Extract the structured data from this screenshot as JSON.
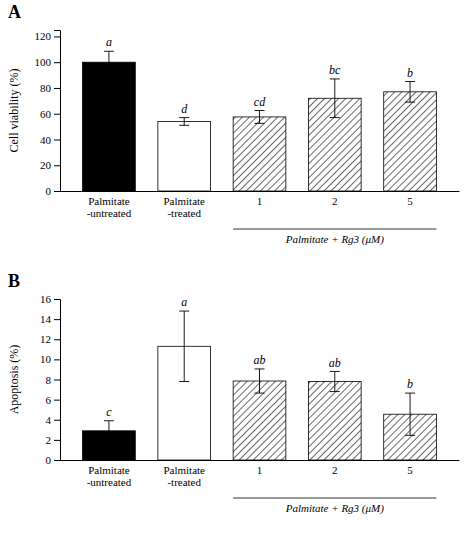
{
  "chart_data": [
    {
      "type": "bar",
      "title": "A",
      "categories": [
        "Palmitate\n-untreated",
        "Palmitate\n-treated",
        "1",
        "2",
        "5"
      ],
      "values": [
        100.0,
        54.0,
        57.5,
        72.0,
        77.0
      ],
      "errors": [
        8.5,
        3.0,
        5.0,
        15.0,
        8.0
      ],
      "colors": [
        "black",
        "white",
        "white",
        "white",
        "white"
      ],
      "ylabel": "Cell viability (%)",
      "ylim": [
        0,
        125
      ],
      "yticks": [
        0,
        20,
        40,
        60,
        80,
        100,
        120
      ],
      "annotations": [
        {
          "text": "a",
          "category": "Palmitate\n-untreated"
        },
        {
          "text": "d",
          "category": "Palmitate\n-treated"
        },
        {
          "text": "cd",
          "category": "1"
        },
        {
          "text": "bc",
          "category": "2"
        },
        {
          "text": "b",
          "category": "5"
        },
        {
          "text": "Palmitate + Rg3 (μM)",
          "categories": [
            "1",
            "2",
            "5"
          ]
        }
      ]
    },
    {
      "type": "bar",
      "title": "B",
      "categories": [
        "Palmitate\n-untreated",
        "Palmitate\n-treated",
        "1",
        "2",
        "5"
      ],
      "values": [
        2.9,
        11.3,
        7.85,
        7.8,
        4.55
      ],
      "errors": [
        1.0,
        3.5,
        1.2,
        1.0,
        2.1
      ],
      "colors": [
        "black",
        "white",
        "white",
        "white",
        "white"
      ],
      "ylabel": "Apoptosis (%)",
      "ylim": [
        0,
        16
      ],
      "yticks": [
        0,
        2,
        4,
        6,
        8,
        10,
        12,
        14,
        16
      ],
      "annotations": [
        {
          "text": "c",
          "category": "Palmitate\n-untreated"
        },
        {
          "text": "a",
          "category": "Palmitate\n-treated"
        },
        {
          "text": "ab",
          "category": "1"
        },
        {
          "text": "ab",
          "category": "2"
        },
        {
          "text": "b",
          "category": "5"
        },
        {
          "text": "Palmitate + Rg3 (μM)",
          "categories": [
            "1",
            "2",
            "5"
          ]
        }
      ]
    }
  ]
}
